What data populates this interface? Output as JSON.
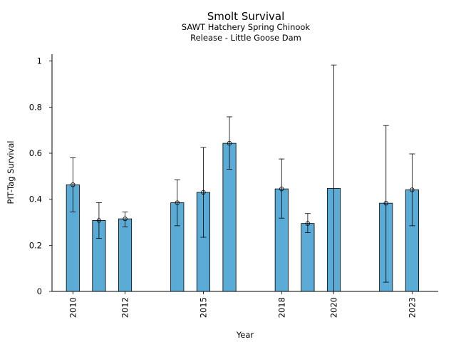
{
  "chart_data": {
    "type": "bar",
    "title": "Smolt Survival",
    "subtitle_lines": [
      "SAWT Hatchery Spring Chinook",
      "Release - Little Goose Dam"
    ],
    "xlabel": "Year",
    "ylabel": "PIT-Tag Survival",
    "ylim": [
      0,
      1.03
    ],
    "yticks": [
      0,
      0.2,
      0.4,
      0.6,
      0.8,
      1
    ],
    "ytick_labels": [
      "0",
      "0.2",
      "0.4",
      "0.6",
      "0.8",
      "1"
    ],
    "xlim": [
      2009.2,
      2024.0
    ],
    "xticks": [
      2010,
      2012,
      2015,
      2018,
      2020,
      2023
    ],
    "xtick_labels": [
      "2010",
      "2012",
      "2015",
      "2018",
      "2020",
      "2023"
    ],
    "bar_width_years": 0.5,
    "grid": false,
    "legend": "none",
    "colors": {
      "bar": "#5aabd6",
      "edge": "#000000"
    },
    "points": [
      {
        "x": 2010,
        "y": 0.463,
        "lower": 0.345,
        "upper": 0.58,
        "marker": true
      },
      {
        "x": 2011,
        "y": 0.308,
        "lower": 0.23,
        "upper": 0.385,
        "marker": true
      },
      {
        "x": 2012,
        "y": 0.315,
        "lower": 0.28,
        "upper": 0.345,
        "marker": true
      },
      {
        "x": 2014,
        "y": 0.385,
        "lower": 0.285,
        "upper": 0.485,
        "marker": true
      },
      {
        "x": 2015,
        "y": 0.43,
        "lower": 0.235,
        "upper": 0.625,
        "marker": true
      },
      {
        "x": 2016,
        "y": 0.643,
        "lower": 0.53,
        "upper": 0.758,
        "marker": true
      },
      {
        "x": 2018,
        "y": 0.445,
        "lower": 0.318,
        "upper": 0.575,
        "marker": true
      },
      {
        "x": 2019,
        "y": 0.295,
        "lower": 0.255,
        "upper": 0.338,
        "marker": true
      },
      {
        "x": 2020,
        "y": 0.447,
        "lower": 0.0,
        "upper": 0.983,
        "marker": false
      },
      {
        "x": 2022,
        "y": 0.383,
        "lower": 0.04,
        "upper": 0.72,
        "marker": true
      },
      {
        "x": 2023,
        "y": 0.441,
        "lower": 0.285,
        "upper": 0.597,
        "marker": true
      }
    ]
  }
}
